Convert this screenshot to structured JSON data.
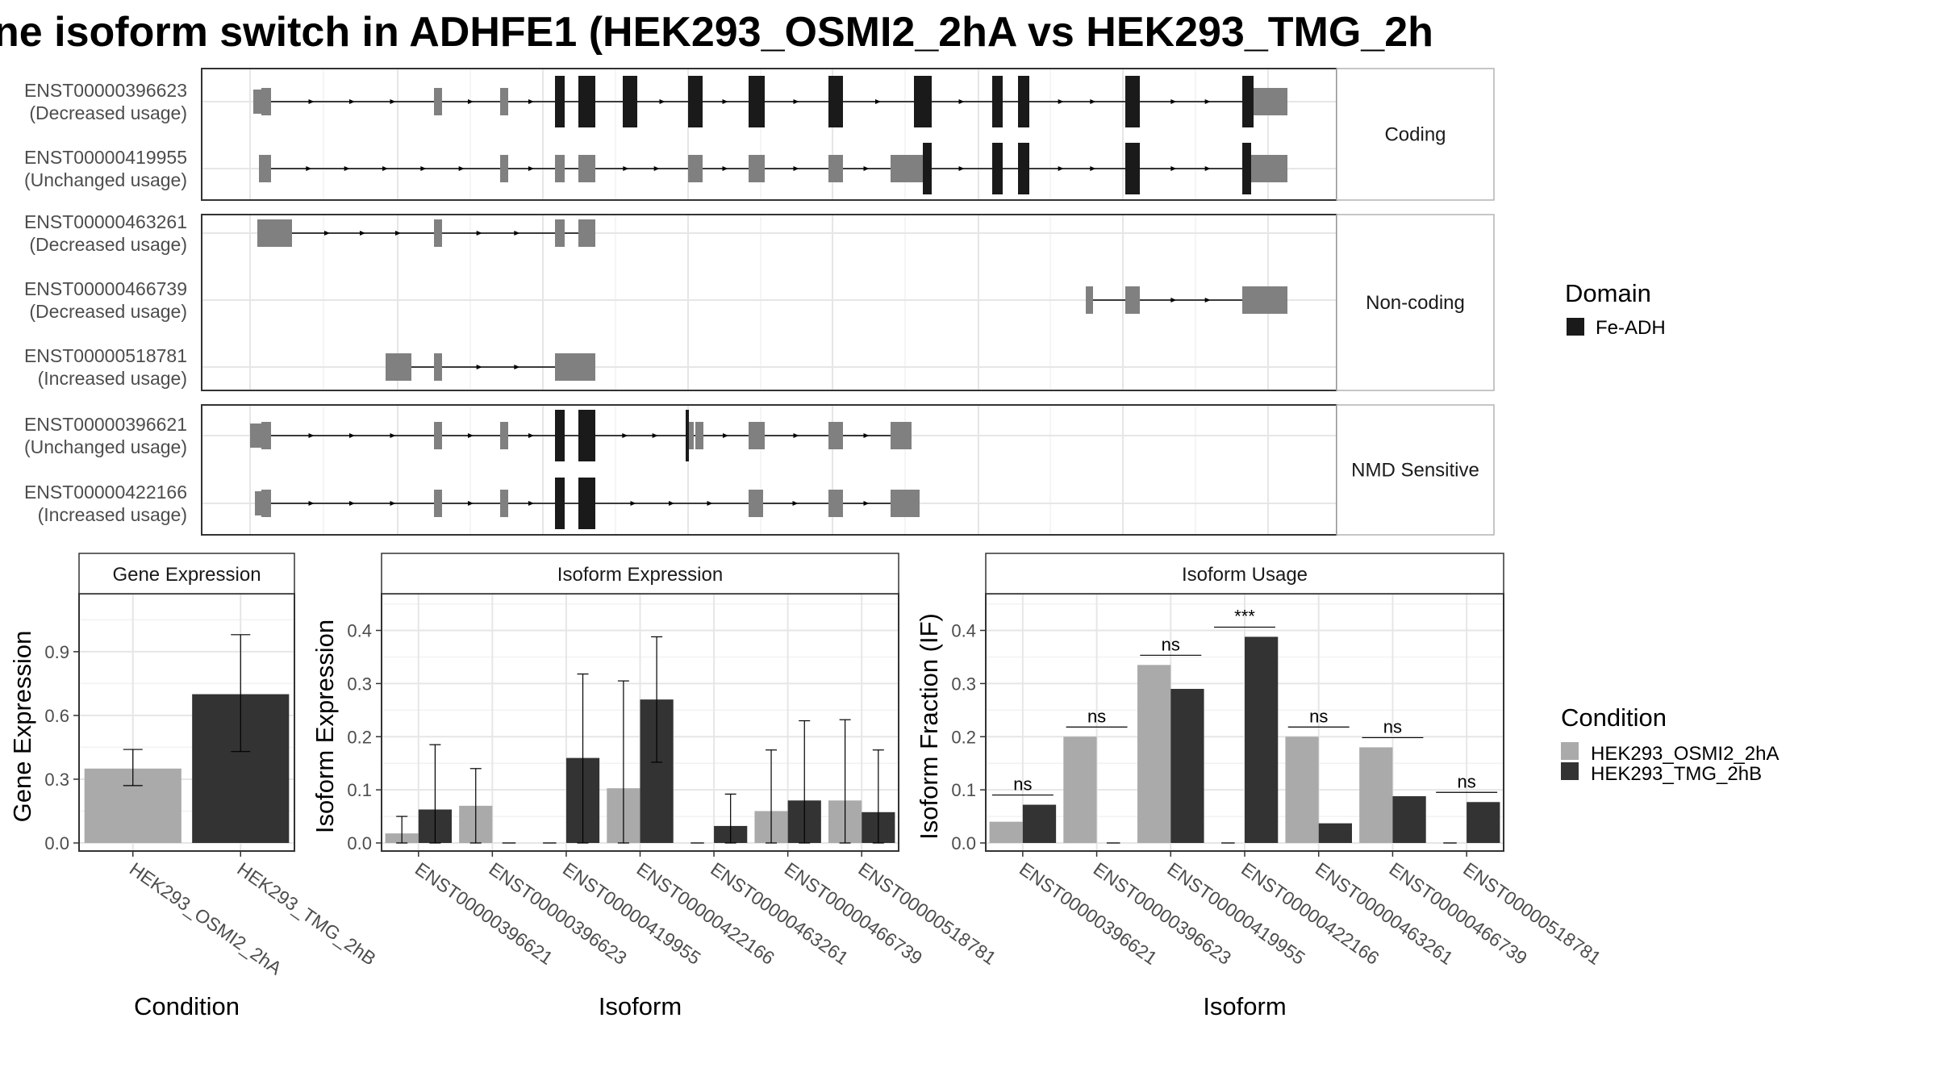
{
  "title": "ne isoform switch in ADHFE1 (HEK293_OSMI2_2hA vs HEK293_TMG_2h",
  "colors": {
    "domain_fill": "#1a1a1a",
    "exon_fill": "#808080",
    "cond_a": "#aaaaaa",
    "cond_b": "#333333",
    "panel_border": "#333333",
    "strip_border": "#b3b3b3",
    "grid_major": "#e6e6e6",
    "grid_minor": "#f2f2f2"
  },
  "structure": {
    "groups": [
      {
        "label": "Coding",
        "transcripts": [
          {
            "id": "ENST00000396623",
            "usage": "(Decreased usage)"
          },
          {
            "id": "ENST00000419955",
            "usage": "(Unchanged usage)"
          }
        ]
      },
      {
        "label": "Non-coding",
        "transcripts": [
          {
            "id": "ENST00000463261",
            "usage": "(Decreased usage)"
          },
          {
            "id": "ENST00000466739",
            "usage": "(Decreased usage)"
          },
          {
            "id": "ENST00000518781",
            "usage": "(Increased usage)"
          }
        ]
      },
      {
        "label": "NMD Sensitive",
        "transcripts": [
          {
            "id": "ENST00000396621",
            "usage": "(Unchanged usage)"
          },
          {
            "id": "ENST00000422166",
            "usage": "(Increased usage)"
          }
        ]
      }
    ]
  },
  "legend_domain": {
    "title": "Domain",
    "items": [
      {
        "label": "Fe-ADH",
        "color": "#1a1a1a"
      }
    ]
  },
  "legend_condition": {
    "title": "Condition",
    "items": [
      {
        "label": "HEK293_OSMI2_2hA",
        "color": "#aaaaaa"
      },
      {
        "label": "HEK293_TMG_2hB",
        "color": "#333333"
      }
    ]
  },
  "chart_data": [
    {
      "type": "bar",
      "title": "Gene Expression",
      "xlabel": "Condition",
      "ylabel": "Gene Expression",
      "ylim": [
        0,
        1.15
      ],
      "yticks": [
        "0.0",
        "0.3",
        "0.6",
        "0.9"
      ],
      "categories": [
        "HEK293_OSMI2_2hA",
        "HEK293_TMG_2hB"
      ],
      "values": [
        0.35,
        0.7
      ],
      "errors_low": [
        0.27,
        0.43
      ],
      "errors_high": [
        0.44,
        0.98
      ]
    },
    {
      "type": "bar",
      "title": "Isoform Expression",
      "xlabel": "Isoform",
      "ylabel": "Isoform Expression",
      "ylim": [
        0,
        0.46
      ],
      "yticks": [
        "0.0",
        "0.1",
        "0.2",
        "0.3",
        "0.4"
      ],
      "categories": [
        "ENST00000396621",
        "ENST00000396623",
        "ENST00000419955",
        "ENST00000422166",
        "ENST00000463261",
        "ENST00000466739",
        "ENST00000518781"
      ],
      "series": [
        {
          "name": "HEK293_OSMI2_2hA",
          "values": [
            0.018,
            0.07,
            0.0,
            0.103,
            0.0,
            0.06,
            0.08
          ],
          "errors_low": [
            0.0,
            0.0,
            0.0,
            0.0,
            0.0,
            0.0,
            0.0
          ],
          "errors_high": [
            0.05,
            0.14,
            0.0,
            0.305,
            0.0,
            0.175,
            0.232
          ]
        },
        {
          "name": "HEK293_TMG_2hB",
          "values": [
            0.063,
            0.0,
            0.16,
            0.27,
            0.032,
            0.08,
            0.058
          ],
          "errors_low": [
            0.0,
            0.0,
            0.0,
            0.152,
            0.0,
            0.0,
            0.0
          ],
          "errors_high": [
            0.185,
            0.0,
            0.318,
            0.388,
            0.092,
            0.23,
            0.175
          ]
        }
      ]
    },
    {
      "type": "bar",
      "title": "Isoform Usage",
      "xlabel": "Isoform",
      "ylabel": "Isoform Fraction (IF)",
      "ylim": [
        0,
        0.46
      ],
      "yticks": [
        "0.0",
        "0.1",
        "0.2",
        "0.3",
        "0.4"
      ],
      "categories": [
        "ENST00000396621",
        "ENST00000396623",
        "ENST00000419955",
        "ENST00000422166",
        "ENST00000463261",
        "ENST00000466739",
        "ENST00000518781"
      ],
      "series": [
        {
          "name": "HEK293_OSMI2_2hA",
          "values": [
            0.04,
            0.2,
            0.335,
            0.0,
            0.2,
            0.18,
            0.0
          ]
        },
        {
          "name": "HEK293_TMG_2hB",
          "values": [
            0.072,
            0.0,
            0.29,
            0.388,
            0.037,
            0.088,
            0.077
          ]
        }
      ],
      "significance": [
        "ns",
        "ns",
        "ns",
        "***",
        "ns",
        "ns",
        "ns"
      ]
    }
  ]
}
